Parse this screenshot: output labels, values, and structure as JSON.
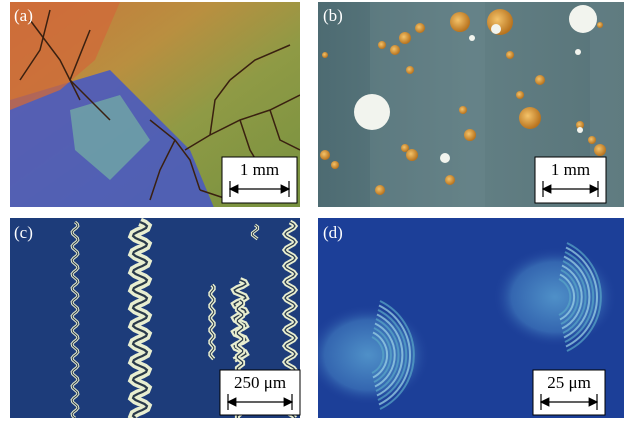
{
  "panels": [
    {
      "label": "(a)",
      "scale_bar": "1 mm"
    },
    {
      "label": "(b)",
      "scale_bar": "1 mm"
    },
    {
      "label": "(c)",
      "scale_bar": "250 μm"
    },
    {
      "label": "(d)",
      "scale_bar": "25 μm"
    }
  ]
}
